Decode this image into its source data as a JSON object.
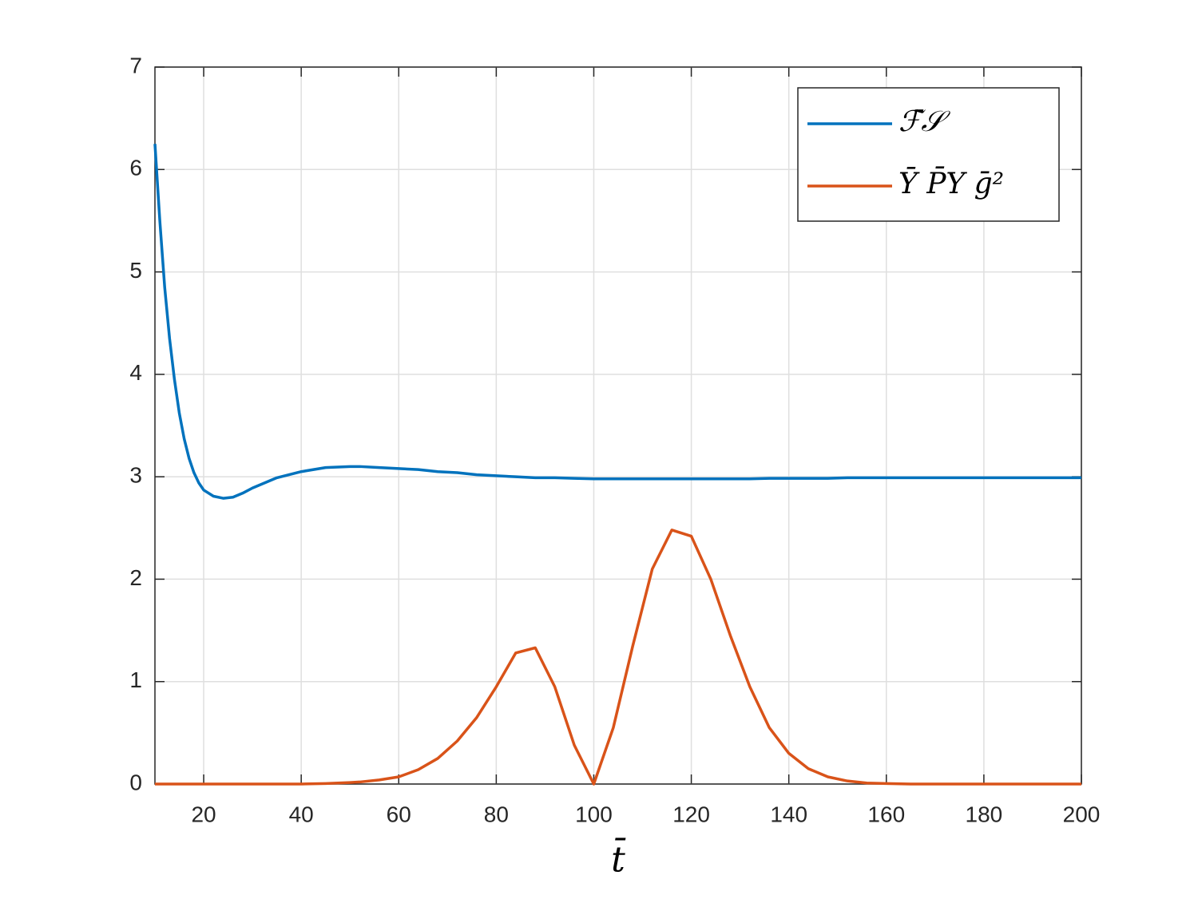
{
  "chart_data": {
    "type": "line",
    "x_label": "t̄",
    "x": [
      10,
      11,
      12,
      13,
      14,
      15,
      16,
      17,
      18,
      19,
      20,
      22,
      24,
      26,
      28,
      30,
      35,
      40,
      45,
      50,
      52,
      56,
      60,
      64,
      68,
      72,
      76,
      80,
      84,
      88,
      92,
      96,
      100,
      104,
      108,
      112,
      116,
      120,
      124,
      128,
      132,
      136,
      140,
      144,
      148,
      152,
      156,
      160,
      165,
      170,
      175,
      180,
      185,
      190,
      195,
      200
    ],
    "series": [
      {
        "name": "ℱ̄𝒮",
        "color": "#0072bd",
        "values": [
          6.25,
          5.5,
          4.85,
          4.35,
          3.95,
          3.62,
          3.37,
          3.18,
          3.04,
          2.94,
          2.87,
          2.81,
          2.79,
          2.8,
          2.84,
          2.89,
          2.99,
          3.05,
          3.09,
          3.1,
          3.1,
          3.09,
          3.08,
          3.07,
          3.05,
          3.04,
          3.02,
          3.01,
          3.0,
          2.99,
          2.99,
          2.985,
          2.98,
          2.98,
          2.98,
          2.98,
          2.98,
          2.98,
          2.98,
          2.98,
          2.98,
          2.985,
          2.985,
          2.985,
          2.985,
          2.99,
          2.99,
          2.99,
          2.99,
          2.99,
          2.99,
          2.99,
          2.99,
          2.99,
          2.99,
          2.99
        ]
      },
      {
        "name": "Ȳ P̄Y ḡ²",
        "color": "#d95319",
        "values": [
          0,
          0,
          0,
          0,
          0,
          0,
          0,
          0,
          0,
          0,
          0,
          0,
          0,
          0,
          0,
          0,
          0,
          0,
          0.005,
          0.015,
          0.02,
          0.04,
          0.07,
          0.14,
          0.25,
          0.42,
          0.65,
          0.95,
          1.28,
          1.33,
          0.95,
          0.38,
          0,
          0.55,
          1.35,
          2.1,
          2.48,
          2.42,
          2.0,
          1.45,
          0.95,
          0.55,
          0.3,
          0.15,
          0.07,
          0.03,
          0.01,
          0.005,
          0,
          0,
          0,
          0,
          0,
          0,
          0,
          0
        ]
      }
    ],
    "xlim": [
      10,
      200
    ],
    "xticks": [
      20,
      40,
      60,
      80,
      100,
      120,
      140,
      160,
      180,
      200
    ],
    "ylim": [
      0,
      7
    ],
    "yticks": [
      0,
      1,
      2,
      3,
      4,
      5,
      6,
      7
    ],
    "grid": true,
    "legend": "upper right"
  }
}
